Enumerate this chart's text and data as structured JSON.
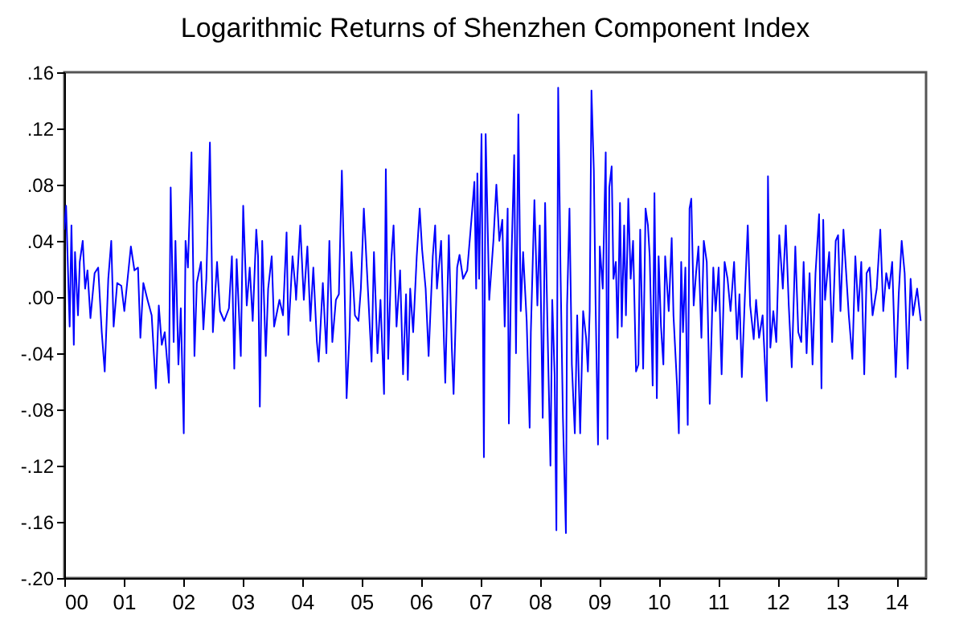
{
  "chart_data": {
    "type": "line",
    "title": "Logarithmic Returns of Shenzhen Component Index",
    "x": [
      0.0,
      0.03,
      0.09,
      0.12,
      0.16,
      0.18,
      0.23,
      0.26,
      0.31,
      0.35,
      0.39,
      0.44,
      0.51,
      0.57,
      0.63,
      0.68,
      0.74,
      0.79,
      0.83,
      0.89,
      0.96,
      1.01,
      1.12,
      1.18,
      1.24,
      1.28,
      1.33,
      1.4,
      1.47,
      1.54,
      1.59,
      1.64,
      1.69,
      1.76,
      1.79,
      1.84,
      1.87,
      1.92,
      1.96,
      2.01,
      2.04,
      2.08,
      2.14,
      2.19,
      2.23,
      2.3,
      2.34,
      2.39,
      2.45,
      2.5,
      2.57,
      2.62,
      2.69,
      2.77,
      2.82,
      2.86,
      2.9,
      2.97,
      3.01,
      3.07,
      3.12,
      3.17,
      3.23,
      3.26,
      3.29,
      3.33,
      3.39,
      3.43,
      3.49,
      3.53,
      3.62,
      3.68,
      3.74,
      3.77,
      3.84,
      3.89,
      3.9,
      3.97,
      4.03,
      4.09,
      4.14,
      4.19,
      4.25,
      4.28,
      4.35,
      4.41,
      4.46,
      4.51,
      4.57,
      4.62,
      4.67,
      4.71,
      4.75,
      4.8,
      4.83,
      4.89,
      4.95,
      4.99,
      5.04,
      5.09,
      5.17,
      5.21,
      5.27,
      5.32,
      5.38,
      5.41,
      5.45,
      5.5,
      5.54,
      5.59,
      5.65,
      5.7,
      5.75,
      5.78,
      5.82,
      5.87,
      5.93,
      5.98,
      6.02,
      6.08,
      6.13,
      6.2,
      6.24,
      6.27,
      6.34,
      6.39,
      6.41,
      6.47,
      6.52,
      6.55,
      6.61,
      6.65,
      6.71,
      6.78,
      6.85,
      6.9,
      6.93,
      6.95,
      6.98,
      7.02,
      7.06,
      7.09,
      7.15,
      7.22,
      7.27,
      7.32,
      7.37,
      7.41,
      7.46,
      7.48,
      7.52,
      7.57,
      7.6,
      7.64,
      7.68,
      7.72,
      7.78,
      7.83,
      7.85,
      7.91,
      7.96,
      8.0,
      8.05,
      8.09,
      8.13,
      8.18,
      8.21,
      8.25,
      8.28,
      8.31,
      8.35,
      8.39,
      8.44,
      8.46,
      8.5,
      8.54,
      8.59,
      8.63,
      8.68,
      8.73,
      8.78,
      8.81,
      8.84,
      8.87,
      8.91,
      8.94,
      8.98,
      9.01,
      9.06,
      9.11,
      9.14,
      9.17,
      9.21,
      9.24,
      9.28,
      9.31,
      9.35,
      9.38,
      9.42,
      9.45,
      9.49,
      9.53,
      9.57,
      9.62,
      9.66,
      9.69,
      9.74,
      9.78,
      9.82,
      9.85,
      9.9,
      9.93,
      9.97,
      10.0,
      10.04,
      10.08,
      10.11,
      10.17,
      10.22,
      10.25,
      10.31,
      10.34,
      10.38,
      10.41,
      10.45,
      10.49,
      10.52,
      10.55,
      10.59,
      10.63,
      10.67,
      10.72,
      10.76,
      10.81,
      10.86,
      10.92,
      10.96,
      11.01,
      11.06,
      11.11,
      11.16,
      11.21,
      11.27,
      11.32,
      11.36,
      11.4,
      11.46,
      11.5,
      11.54,
      11.6,
      11.64,
      11.69,
      11.75,
      11.82,
      11.84,
      11.88,
      11.93,
      11.98,
      12.03,
      12.09,
      12.14,
      12.19,
      12.24,
      12.3,
      12.35,
      12.4,
      12.44,
      12.49,
      12.54,
      12.59,
      12.64,
      12.7,
      12.74,
      12.77,
      12.8,
      12.87,
      12.92,
      12.98,
      13.02,
      13.06,
      13.11,
      13.15,
      13.2,
      13.26,
      13.31,
      13.36,
      13.41,
      13.46,
      13.5,
      13.55,
      13.6,
      13.67,
      13.73,
      13.78,
      13.83,
      13.88,
      13.93,
      13.99,
      14.04,
      14.09,
      14.14,
      14.19,
      14.24,
      14.28,
      14.35,
      14.41
    ],
    "series": [
      {
        "color": "#0000ff",
        "values": [
          0.048,
          0.065,
          -0.021,
          0.051,
          -0.034,
          0.032,
          -0.013,
          0.025,
          0.04,
          0.006,
          0.019,
          -0.015,
          0.017,
          0.021,
          -0.025,
          -0.053,
          0.013,
          0.04,
          -0.021,
          0.01,
          0.008,
          -0.01,
          0.036,
          0.019,
          0.021,
          -0.029,
          0.01,
          -0.002,
          -0.013,
          -0.065,
          -0.006,
          -0.034,
          -0.025,
          -0.061,
          0.078,
          -0.032,
          0.04,
          -0.048,
          -0.008,
          -0.097,
          0.04,
          0.021,
          0.103,
          -0.042,
          0.01,
          0.025,
          -0.023,
          0.013,
          0.11,
          -0.025,
          0.025,
          -0.01,
          -0.017,
          -0.008,
          0.029,
          -0.051,
          0.027,
          -0.042,
          0.065,
          -0.006,
          0.021,
          -0.017,
          0.048,
          0.029,
          -0.078,
          0.04,
          -0.042,
          0.006,
          0.029,
          -0.021,
          -0.002,
          -0.013,
          0.046,
          -0.027,
          0.029,
          0.006,
          -0.002,
          0.051,
          -0.002,
          0.036,
          -0.017,
          0.021,
          -0.032,
          -0.046,
          0.01,
          -0.04,
          0.04,
          -0.032,
          -0.002,
          0.002,
          0.09,
          0.021,
          -0.072,
          -0.025,
          0.032,
          -0.013,
          -0.017,
          0.006,
          0.063,
          0.021,
          -0.046,
          0.032,
          -0.04,
          -0.002,
          -0.069,
          0.091,
          -0.044,
          0.025,
          0.051,
          -0.021,
          0.019,
          -0.055,
          0.002,
          -0.059,
          0.006,
          -0.025,
          0.029,
          0.063,
          0.034,
          0.006,
          -0.042,
          0.029,
          0.051,
          0.006,
          0.04,
          -0.034,
          -0.061,
          0.044,
          -0.036,
          -0.069,
          0.021,
          0.03,
          0.013,
          0.019,
          0.055,
          0.082,
          0.006,
          0.088,
          0.013,
          0.116,
          -0.114,
          0.116,
          -0.002,
          0.04,
          0.08,
          0.04,
          0.055,
          -0.021,
          0.063,
          -0.09,
          0.021,
          0.101,
          -0.04,
          0.13,
          -0.01,
          0.032,
          -0.017,
          -0.093,
          -0.025,
          0.069,
          -0.006,
          0.051,
          -0.086,
          0.067,
          -0.021,
          -0.12,
          -0.002,
          -0.055,
          -0.166,
          0.149,
          0.017,
          -0.086,
          -0.168,
          -0.006,
          0.063,
          -0.048,
          -0.097,
          -0.013,
          -0.097,
          -0.01,
          -0.029,
          -0.053,
          -0.01,
          0.147,
          0.09,
          -0.006,
          -0.105,
          0.036,
          0.006,
          0.103,
          -0.101,
          0.078,
          0.093,
          0.013,
          0.025,
          -0.029,
          0.067,
          -0.021,
          0.051,
          -0.013,
          0.07,
          0.013,
          0.04,
          -0.053,
          -0.048,
          0.048,
          -0.051,
          0.063,
          0.051,
          0.029,
          -0.063,
          0.074,
          -0.072,
          0.029,
          -0.021,
          -0.048,
          0.029,
          -0.01,
          0.042,
          -0.013,
          -0.063,
          -0.097,
          0.025,
          -0.025,
          0.021,
          -0.091,
          0.063,
          0.07,
          -0.006,
          0.017,
          0.036,
          -0.029,
          0.04,
          0.025,
          -0.076,
          0.021,
          -0.01,
          0.021,
          -0.055,
          0.025,
          0.013,
          -0.01,
          0.025,
          -0.03,
          0.002,
          -0.057,
          0.01,
          0.051,
          -0.006,
          -0.03,
          -0.002,
          -0.029,
          -0.013,
          -0.074,
          0.086,
          -0.036,
          -0.01,
          -0.032,
          0.044,
          0.006,
          0.051,
          -0.006,
          -0.05,
          0.036,
          -0.025,
          -0.032,
          0.025,
          -0.04,
          0.017,
          -0.048,
          0.017,
          0.059,
          -0.065,
          0.055,
          -0.002,
          0.032,
          -0.032,
          0.04,
          0.044,
          -0.01,
          0.048,
          0.021,
          -0.013,
          -0.044,
          0.029,
          -0.01,
          0.025,
          -0.055,
          0.017,
          0.021,
          -0.013,
          0.006,
          0.048,
          -0.01,
          0.017,
          0.006,
          0.025,
          -0.057,
          0.002,
          0.04,
          0.017,
          -0.051,
          0.013,
          -0.013,
          0.006,
          -0.017
        ]
      }
    ],
    "xlim": [
      0,
      14.5
    ],
    "xticks": [
      {
        "value": 0,
        "label": "00"
      },
      {
        "value": 1,
        "label": "01"
      },
      {
        "value": 2,
        "label": "02"
      },
      {
        "value": 3,
        "label": "03"
      },
      {
        "value": 4,
        "label": "04"
      },
      {
        "value": 5,
        "label": "05"
      },
      {
        "value": 6,
        "label": "06"
      },
      {
        "value": 7,
        "label": "07"
      },
      {
        "value": 8,
        "label": "08"
      },
      {
        "value": 9,
        "label": "09"
      },
      {
        "value": 10,
        "label": "10"
      },
      {
        "value": 11,
        "label": "11"
      },
      {
        "value": 12,
        "label": "12"
      },
      {
        "value": 13,
        "label": "13"
      },
      {
        "value": 14,
        "label": "14"
      }
    ],
    "ylim": [
      -0.2,
      0.16
    ],
    "yticks": [
      {
        "value": 0.16,
        "label": ".16"
      },
      {
        "value": 0.12,
        "label": ".12"
      },
      {
        "value": 0.08,
        "label": ".08"
      },
      {
        "value": 0.04,
        "label": ".04"
      },
      {
        "value": 0,
        "label": ".00"
      },
      {
        "value": -0.04,
        "label": "-.04"
      },
      {
        "value": -0.08,
        "label": "-.08"
      },
      {
        "value": -0.12,
        "label": "-.12"
      },
      {
        "value": -0.16,
        "label": "-.16"
      },
      {
        "value": -0.2,
        "label": "-.20"
      }
    ]
  }
}
